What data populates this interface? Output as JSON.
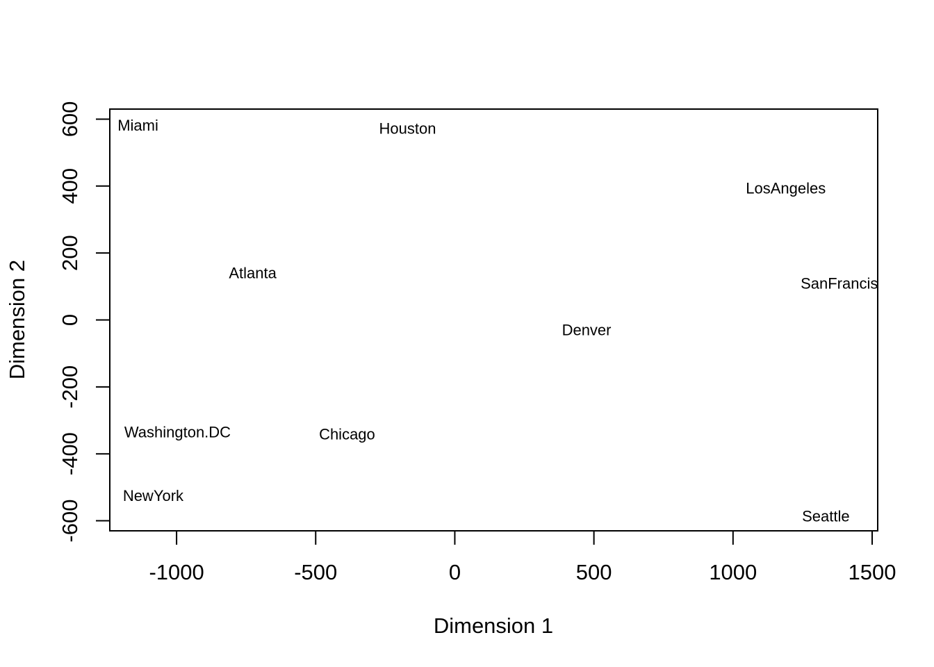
{
  "chart_data": {
    "type": "scatter",
    "title": "",
    "xlabel": "Dimension 1",
    "ylabel": "Dimension 2",
    "xlim": [
      -1240,
      1520
    ],
    "ylim": [
      -630,
      630
    ],
    "xticks": [
      -1000,
      -500,
      0,
      500,
      1000,
      1500
    ],
    "yticks": [
      -600,
      -400,
      -200,
      0,
      200,
      400,
      600
    ],
    "grid": false,
    "points": [
      {
        "label": "Miami",
        "x": -1212,
        "y": 582
      },
      {
        "label": "Houston",
        "x": -272,
        "y": 573
      },
      {
        "label": "LosAngeles",
        "x": 1046,
        "y": 394
      },
      {
        "label": "Atlanta",
        "x": -812,
        "y": 141
      },
      {
        "label": "SanFrancisco",
        "x": 1243,
        "y": 110
      },
      {
        "label": "Denver",
        "x": 385,
        "y": -29
      },
      {
        "label": "Washington.DC",
        "x": -1188,
        "y": -334
      },
      {
        "label": "Chicago",
        "x": -488,
        "y": -340
      },
      {
        "label": "NewYork",
        "x": -1193,
        "y": -524
      },
      {
        "label": "Seattle",
        "x": 1248,
        "y": -585
      }
    ]
  }
}
